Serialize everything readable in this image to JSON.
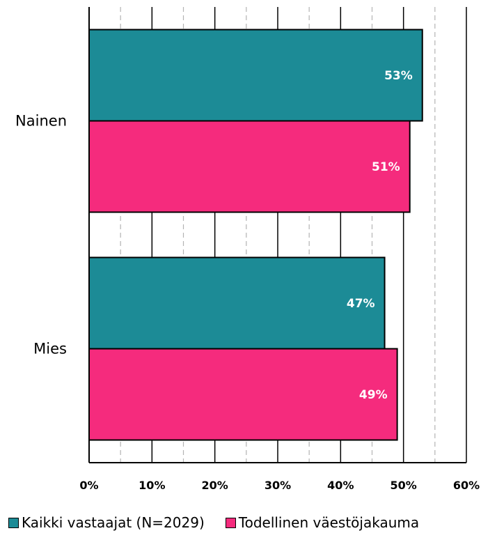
{
  "chart_data": {
    "type": "bar",
    "orientation": "horizontal",
    "categories": [
      "Nainen",
      "Mies"
    ],
    "series": [
      {
        "name": "Kaikki vastaajat (N=2029)",
        "values": [
          53,
          47
        ],
        "labels": [
          "53%",
          "47%"
        ],
        "color": "#1c8b96"
      },
      {
        "name": "Todellinen väestöjakauma",
        "values": [
          51,
          49
        ],
        "labels": [
          "51%",
          "49%"
        ],
        "color": "#f52b7d"
      }
    ],
    "xlim": [
      0,
      60
    ],
    "xticks": [
      0,
      10,
      20,
      30,
      40,
      50,
      60
    ],
    "xtick_labels": [
      "0%",
      "10%",
      "20%",
      "30%",
      "40%",
      "50%",
      "60%"
    ],
    "minor_gridlines": [
      5,
      15,
      25,
      35,
      45,
      55
    ],
    "grid": true,
    "legend_position": "bottom"
  }
}
